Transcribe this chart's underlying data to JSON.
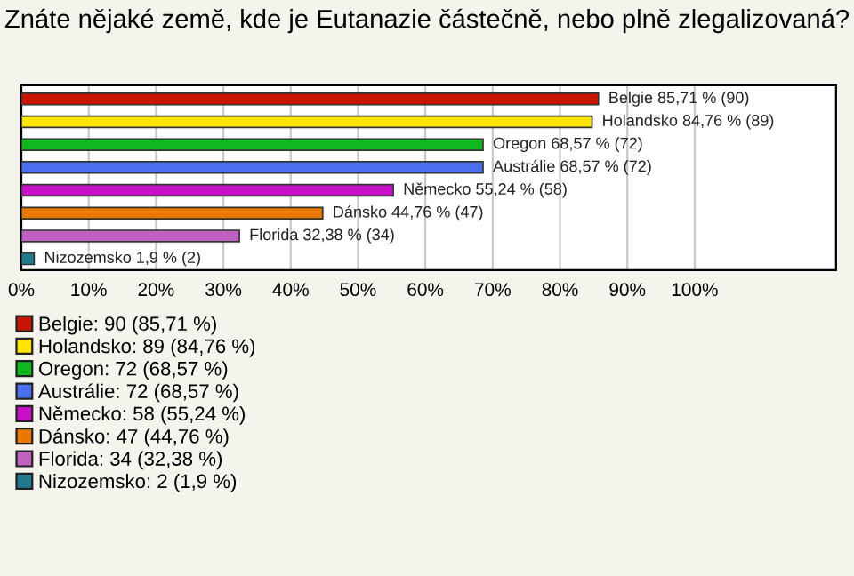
{
  "chart_data": {
    "type": "bar",
    "orientation": "horizontal",
    "title": "Znáte nějaké země, kde je Eutanazie částečně, nebo plně zlegalizovaná?",
    "categories": [
      null,
      null,
      null,
      null,
      null,
      null,
      null,
      null
    ],
    "series": [
      {
        "name": "Belgie: 90 (85,71 %)",
        "color": "#c81400",
        "values": [
          85.71,
          null,
          null,
          null,
          null,
          null,
          null,
          null
        ],
        "value_labels": [
          "Belgie 85,71 % (90)",
          null,
          null,
          null,
          null,
          null,
          null,
          null
        ]
      },
      {
        "name": "Holandsko: 89 (84,76 %)",
        "color": "#ffe400",
        "values": [
          null,
          84.76,
          null,
          null,
          null,
          null,
          null,
          null
        ],
        "value_labels": [
          null,
          "Holandsko 84,76 % (89)",
          null,
          null,
          null,
          null,
          null,
          null
        ]
      },
      {
        "name": "Oregon: 72 (68,57 %)",
        "color": "#10b820",
        "values": [
          null,
          null,
          68.57,
          null,
          null,
          null,
          null,
          null
        ],
        "value_labels": [
          null,
          null,
          "Oregon 68,57 % (72)",
          null,
          null,
          null,
          null,
          null
        ]
      },
      {
        "name": "Austrálie: 72 (68,57 %)",
        "color": "#4a70f0",
        "values": [
          null,
          null,
          null,
          68.57,
          null,
          null,
          null,
          null
        ],
        "value_labels": [
          null,
          null,
          null,
          "Austrálie 68,57 % (72)",
          null,
          null,
          null,
          null
        ]
      },
      {
        "name": "Německo: 58 (55,24 %)",
        "color": "#c810c8",
        "values": [
          null,
          null,
          null,
          null,
          55.24,
          null,
          null,
          null
        ],
        "value_labels": [
          null,
          null,
          null,
          null,
          "Německo 55,24 % (58)",
          null,
          null,
          null
        ]
      },
      {
        "name": "Dánsko: 47 (44,76 %)",
        "color": "#e87800",
        "values": [
          null,
          null,
          null,
          null,
          null,
          44.76,
          null,
          null
        ],
        "value_labels": [
          null,
          null,
          null,
          null,
          null,
          "Dánsko 44,76 % (47)",
          null,
          null
        ]
      },
      {
        "name": "Florida: 34 (32,38 %)",
        "color": "#c060c0",
        "values": [
          null,
          null,
          null,
          null,
          null,
          null,
          32.38,
          null
        ],
        "value_labels": [
          null,
          null,
          null,
          null,
          null,
          null,
          "Florida 32,38 % (34)",
          null
        ]
      },
      {
        "name": "Nizozemsko: 2 (1,9 %)",
        "color": "#1f7a90",
        "values": [
          null,
          null,
          null,
          null,
          null,
          null,
          null,
          1.9
        ],
        "value_labels": [
          null,
          null,
          null,
          null,
          null,
          null,
          null,
          "Nizozemsko 1,9 % (2)"
        ]
      }
    ],
    "xlim": [
      0,
      121
    ],
    "xticks": [
      {
        "value": 0,
        "label": "0%"
      },
      {
        "value": 10,
        "label": "10%"
      },
      {
        "value": 20,
        "label": "20%"
      },
      {
        "value": 30,
        "label": "30%"
      },
      {
        "value": 40,
        "label": "40%"
      },
      {
        "value": 50,
        "label": "50%"
      },
      {
        "value": 60,
        "label": "60%"
      },
      {
        "value": 70,
        "label": "70%"
      },
      {
        "value": 80,
        "label": "80%"
      },
      {
        "value": 90,
        "label": "90%"
      },
      {
        "value": 100,
        "label": "100%"
      }
    ],
    "grid": "x",
    "legend": "bottom"
  }
}
